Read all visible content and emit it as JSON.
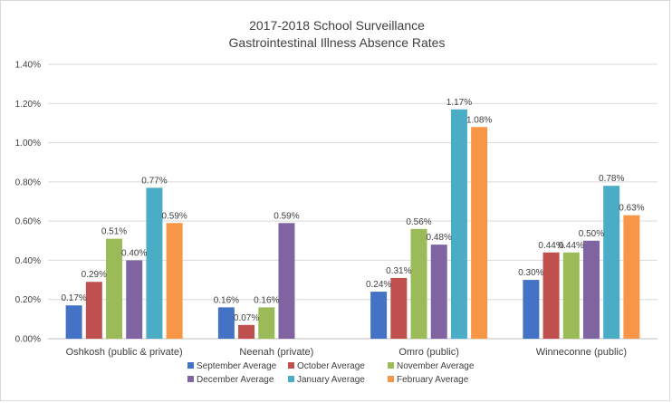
{
  "chart_data": {
    "type": "bar",
    "title_lines": [
      "2017-2018 School Surveillance",
      "Gastrointestinal Illness Absence Rates"
    ],
    "categories": [
      "Oshkosh (public & private)",
      "Neenah (private)",
      "Omro (public)",
      "Winneconne (public)"
    ],
    "ylim": [
      0,
      1.4
    ],
    "yticks": [
      0,
      0.2,
      0.4,
      0.6,
      0.8,
      1.0,
      1.2,
      1.4
    ],
    "ytick_labels": [
      "0.00%",
      "0.20%",
      "0.40%",
      "0.60%",
      "0.80%",
      "1.00%",
      "1.20%",
      "1.40%"
    ],
    "grid": true,
    "legend_position": "bottom",
    "series": [
      {
        "name": "September Average",
        "color": "#4472c4",
        "values": [
          0.17,
          0.16,
          0.24,
          0.3
        ],
        "labels": [
          "0.17%",
          "0.16%",
          "0.24%",
          "0.30%"
        ]
      },
      {
        "name": "October Average",
        "color": "#c0504d",
        "values": [
          0.29,
          0.07,
          0.31,
          0.44
        ],
        "labels": [
          "0.29%",
          "0.07%",
          "0.31%",
          "0.44%"
        ]
      },
      {
        "name": "November Average",
        "color": "#9bbb59",
        "values": [
          0.51,
          0.16,
          0.56,
          0.44
        ],
        "labels": [
          "0.51%",
          "0.16%",
          "0.56%",
          "0.44%"
        ]
      },
      {
        "name": "December Average",
        "color": "#8064a2",
        "values": [
          0.4,
          0.59,
          0.48,
          0.5
        ],
        "labels": [
          "0.40%",
          "0.59%",
          "0.48%",
          "0.50%"
        ]
      },
      {
        "name": "January Average",
        "color": "#4bacc6",
        "values": [
          0.77,
          null,
          1.17,
          0.78
        ],
        "labels": [
          "0.77%",
          null,
          "1.17%",
          "0.78%"
        ]
      },
      {
        "name": "February Average",
        "color": "#f79646",
        "values": [
          0.59,
          null,
          1.08,
          0.63
        ],
        "labels": [
          "0.59%",
          null,
          "1.08%",
          "0.63%"
        ]
      }
    ]
  }
}
